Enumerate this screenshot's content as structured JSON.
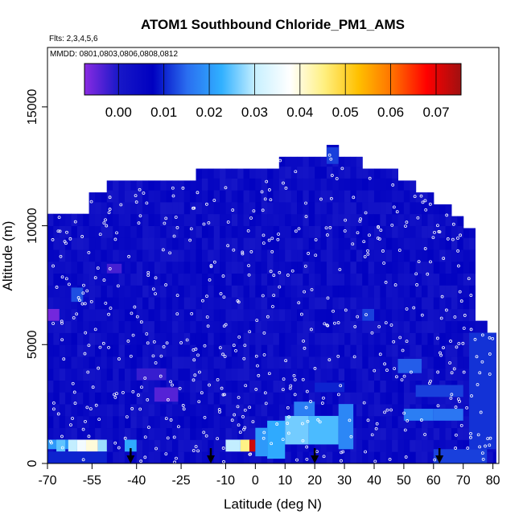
{
  "chart_data": {
    "type": "heatmap",
    "title": "ATOM1 Southbound Chloride_PM1_AMS",
    "flights_note": "Flts: 2,3,4,5,6",
    "dates_note": "MMDD: 0801,0803,0806,0808,0812",
    "xlabel": "Latitude (deg N)",
    "ylabel": "Altitude (m)",
    "xlim": [
      -70,
      82
    ],
    "ylim": [
      0,
      17500
    ],
    "x_ticks": [
      -70,
      -55,
      -40,
      -25,
      -10,
      0,
      10,
      20,
      30,
      40,
      50,
      60,
      70,
      80
    ],
    "y_ticks": [
      0,
      5000,
      10000,
      15000
    ],
    "colorbar": {
      "ticks": [
        0.0,
        0.01,
        0.02,
        0.03,
        0.04,
        0.05,
        0.06,
        0.07
      ],
      "tick_labels": [
        "0.00",
        "0.01",
        "0.02",
        "0.03",
        "0.04",
        "0.05",
        "0.06",
        "0.07"
      ],
      "range": [
        -0.0075,
        0.0755
      ],
      "colors": [
        "#8a2be2",
        "#1818c8",
        "#0000c0",
        "#2a6ef0",
        "#30b0ff",
        "#c8f0ff",
        "#ffffff",
        "#fff080",
        "#ffc000",
        "#ff7000",
        "#ff0000",
        "#a01010"
      ]
    },
    "value_scale": [
      -0.0075,
      0.0755
    ],
    "background_value": 0.004,
    "envelope": [
      {
        "lat_start": -70,
        "lat_end": -62,
        "top": 10500
      },
      {
        "lat_start": -62,
        "lat_end": -56,
        "top": 10500
      },
      {
        "lat_start": -56,
        "lat_end": -50,
        "top": 11400
      },
      {
        "lat_start": -50,
        "lat_end": -40,
        "top": 11900
      },
      {
        "lat_start": -40,
        "lat_end": -20,
        "top": 11900
      },
      {
        "lat_start": -20,
        "lat_end": -8,
        "top": 12400
      },
      {
        "lat_start": -8,
        "lat_end": 8,
        "top": 12400
      },
      {
        "lat_start": 8,
        "lat_end": 24,
        "top": 12900
      },
      {
        "lat_start": 24,
        "lat_end": 28,
        "top": 13400
      },
      {
        "lat_start": 28,
        "lat_end": 36,
        "top": 12900
      },
      {
        "lat_start": 36,
        "lat_end": 48,
        "top": 12400
      },
      {
        "lat_start": 48,
        "lat_end": 54,
        "top": 11900
      },
      {
        "lat_start": 54,
        "lat_end": 60,
        "top": 11400
      },
      {
        "lat_start": 60,
        "lat_end": 66,
        "top": 10900
      },
      {
        "lat_start": 66,
        "lat_end": 70,
        "top": 10400
      },
      {
        "lat_start": 70,
        "lat_end": 74,
        "top": 9900
      },
      {
        "lat_start": 74,
        "lat_end": 78,
        "top": 6000
      },
      {
        "lat_start": 78,
        "lat_end": 81,
        "top": 5500
      }
    ],
    "patches": [
      {
        "lat_start": -70,
        "lat_end": -60,
        "alt_start": 600,
        "alt_end": 1000,
        "value": 0.02
      },
      {
        "lat_start": -67,
        "lat_end": -64,
        "alt_start": 500,
        "alt_end": 1000,
        "value": 0.025
      },
      {
        "lat_start": -63,
        "lat_end": -60,
        "alt_start": 500,
        "alt_end": 1000,
        "value": 0.03
      },
      {
        "lat_start": -60,
        "lat_end": -57,
        "alt_start": 500,
        "alt_end": 1000,
        "value": 0.036
      },
      {
        "lat_start": -57,
        "lat_end": -53,
        "alt_start": 500,
        "alt_end": 1000,
        "value": 0.04
      },
      {
        "lat_start": -53,
        "lat_end": -50,
        "alt_start": 500,
        "alt_end": 1000,
        "value": 0.028
      },
      {
        "lat_start": -44,
        "lat_end": -40,
        "alt_start": 500,
        "alt_end": 1000,
        "value": 0.022
      },
      {
        "lat_start": -10,
        "lat_end": -5,
        "alt_start": 500,
        "alt_end": 1000,
        "value": 0.03
      },
      {
        "lat_start": -5,
        "lat_end": -2,
        "alt_start": 500,
        "alt_end": 1000,
        "value": 0.045
      },
      {
        "lat_start": -2,
        "lat_end": 0,
        "alt_start": 500,
        "alt_end": 1000,
        "value": 0.072
      },
      {
        "lat_start": 0,
        "lat_end": 4,
        "alt_start": 300,
        "alt_end": 1500,
        "value": 0.02
      },
      {
        "lat_start": 4,
        "lat_end": 10,
        "alt_start": 200,
        "alt_end": 1800,
        "value": 0.022
      },
      {
        "lat_start": 10,
        "lat_end": 18,
        "alt_start": 800,
        "alt_end": 2000,
        "value": 0.026
      },
      {
        "lat_start": 18,
        "lat_end": 28,
        "alt_start": 800,
        "alt_end": 2000,
        "value": 0.024
      },
      {
        "lat_start": 28,
        "lat_end": 33,
        "alt_start": 600,
        "alt_end": 2500,
        "value": 0.018
      },
      {
        "lat_start": 13,
        "lat_end": 20,
        "alt_start": 2000,
        "alt_end": 2600,
        "value": 0.017
      },
      {
        "lat_start": 50,
        "lat_end": 60,
        "alt_start": 1800,
        "alt_end": 2300,
        "value": 0.017
      },
      {
        "lat_start": 60,
        "lat_end": 70,
        "alt_start": 1800,
        "alt_end": 2300,
        "value": 0.016
      },
      {
        "lat_start": 48,
        "lat_end": 56,
        "alt_start": 3800,
        "alt_end": 4400,
        "value": 0.014
      },
      {
        "lat_start": 54,
        "lat_end": 70,
        "alt_start": 2800,
        "alt_end": 3300,
        "value": 0.012
      },
      {
        "lat_start": -62,
        "lat_end": -58,
        "alt_start": 6800,
        "alt_end": 7400,
        "value": 0.013
      },
      {
        "lat_start": 36,
        "lat_end": 40,
        "alt_start": 6000,
        "alt_end": 6500,
        "value": 0.012
      },
      {
        "lat_start": 24,
        "lat_end": 28,
        "alt_start": 12600,
        "alt_end": 13300,
        "value": 0.012
      },
      {
        "lat_start": -34,
        "lat_end": -26,
        "alt_start": 2600,
        "alt_end": 3200,
        "value": -0.004
      },
      {
        "lat_start": -70,
        "lat_end": -66,
        "alt_start": 6000,
        "alt_end": 6500,
        "value": -0.006
      },
      {
        "lat_start": -50,
        "lat_end": -45,
        "alt_start": 8000,
        "alt_end": 8400,
        "value": -0.003
      },
      {
        "lat_start": -40,
        "lat_end": -30,
        "alt_start": 3500,
        "alt_end": 4000,
        "value": -0.002
      },
      {
        "lat_start": 20,
        "lat_end": 30,
        "alt_start": 3000,
        "alt_end": 3400,
        "value": 0.01
      },
      {
        "lat_start": -70,
        "lat_end": -50,
        "alt_start": 0,
        "alt_end": 500,
        "value": 0.01
      },
      {
        "lat_start": 60,
        "lat_end": 78,
        "alt_start": 0,
        "alt_end": 600,
        "value": 0.012
      },
      {
        "lat_start": 72,
        "lat_end": 81,
        "alt_start": 600,
        "alt_end": 5500,
        "value": 0.011
      }
    ],
    "arrow_latitudes": [
      -42,
      -15,
      20,
      62
    ],
    "samples_note": "open circles mark individual measurement locations"
  }
}
